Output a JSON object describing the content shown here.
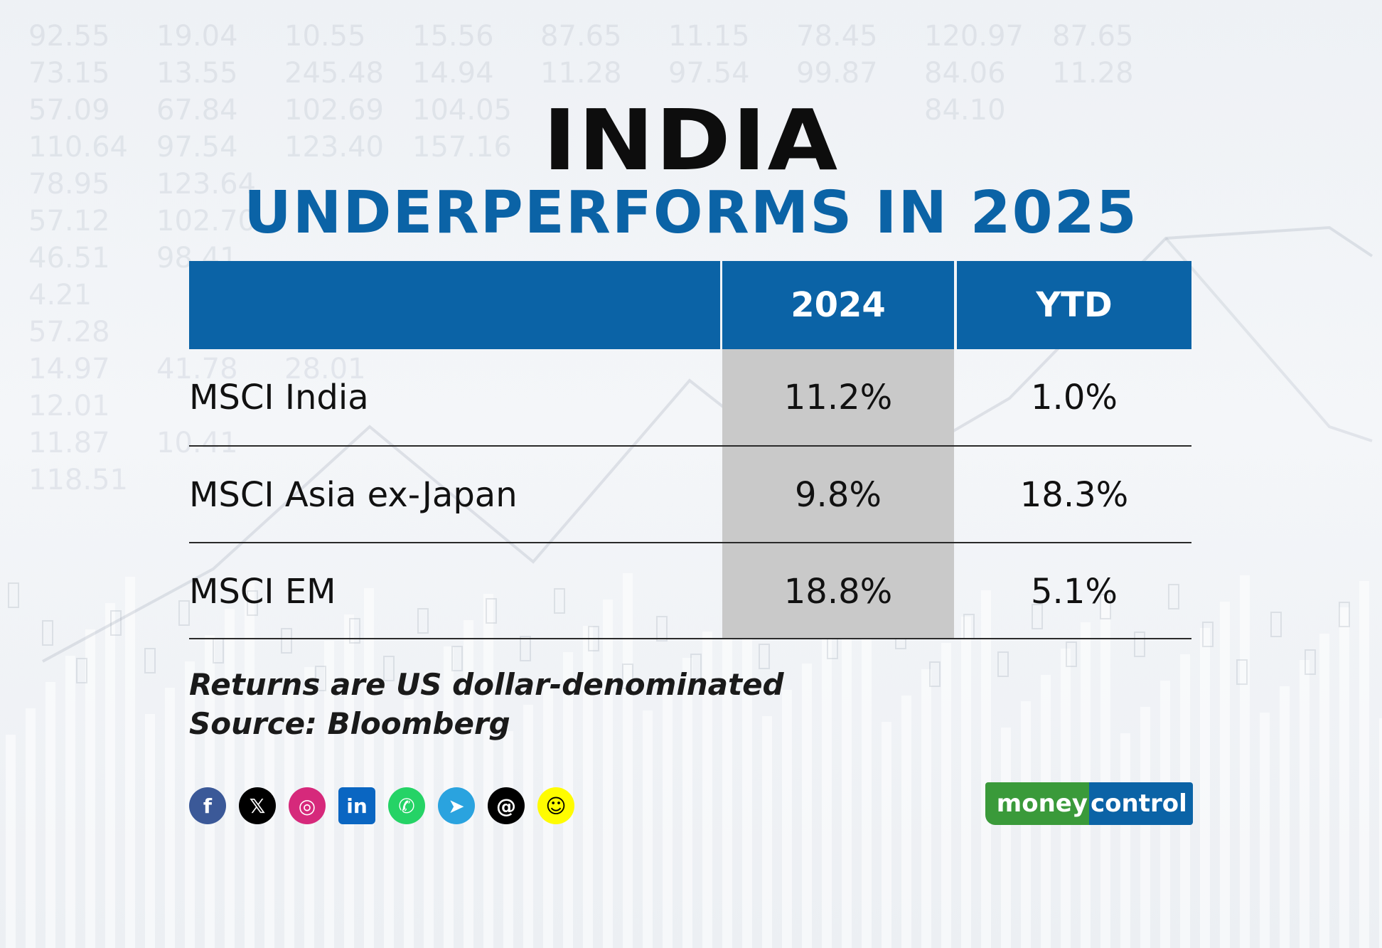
{
  "title_line1": "INDIA",
  "title_line2": "UNDERPERFORMS IN 2025",
  "chart_data": {
    "type": "table",
    "title": "INDIA UNDERPERFORMS IN 2025",
    "columns": [
      "",
      "2024",
      "YTD"
    ],
    "rows": [
      {
        "label": "MSCI India",
        "y2024": "11.2%",
        "ytd": "1.0%"
      },
      {
        "label": "MSCI Asia ex-Japan",
        "y2024": "9.8%",
        "ytd": "18.3%"
      },
      {
        "label": "MSCI EM",
        "y2024": "18.8%",
        "ytd": "5.1%"
      }
    ]
  },
  "notes": {
    "line1": "Returns are US dollar-denominated",
    "line2": "Source: Bloomberg"
  },
  "social_icons": [
    {
      "name": "facebook-icon",
      "glyph": "f",
      "color": "#3b5998"
    },
    {
      "name": "x-icon",
      "glyph": "𝕏",
      "color": "#000000"
    },
    {
      "name": "instagram-icon",
      "glyph": "◎",
      "color": "#d6297b"
    },
    {
      "name": "linkedin-icon",
      "glyph": "in",
      "color": "#0a66c2"
    },
    {
      "name": "whatsapp-icon",
      "glyph": "✆",
      "color": "#25d366"
    },
    {
      "name": "telegram-icon",
      "glyph": "➤",
      "color": "#2aa3df"
    },
    {
      "name": "threads-icon",
      "glyph": "@",
      "color": "#000000"
    },
    {
      "name": "snapchat-icon",
      "glyph": "☺",
      "color": "#fffc00"
    }
  ],
  "logo": {
    "part1": "money",
    "part2": "control"
  },
  "background_numbers": [
    [
      "92.55",
      "19.04",
      "10.55",
      "15.56",
      "87.65",
      "11.15",
      "78.45",
      "120.97",
      "87.65"
    ],
    [
      "73.15",
      "13.55",
      "245.48",
      "14.94",
      "11.28",
      "97.54",
      "99.87",
      "84.06",
      "11.28"
    ],
    [
      "57.09",
      "67.84",
      "102.69",
      "104.05",
      "",
      "",
      "",
      "84.10",
      ""
    ],
    [
      "110.64",
      "97.54",
      "123.40",
      "157.16",
      "",
      "",
      "",
      "",
      ""
    ],
    [
      "78.95",
      "123.64",
      "",
      "",
      "",
      "",
      "",
      "",
      ""
    ],
    [
      "57.12",
      "102.70",
      "",
      "",
      "",
      "",
      "",
      "",
      ""
    ],
    [
      "46.51",
      "98.41",
      "",
      "",
      "",
      "",
      "",
      "",
      ""
    ],
    [
      "4.21",
      "",
      "",
      "",
      "",
      "",
      "",
      "",
      ""
    ],
    [
      "57.28",
      "",
      "",
      "",
      "",
      "",
      "",
      "",
      ""
    ],
    [
      "14.97",
      "41.78",
      "28.01",
      "",
      "",
      "",
      "",
      "",
      ""
    ],
    [
      "12.01",
      "",
      "",
      "",
      "",
      "",
      "",
      "",
      ""
    ],
    [
      "11.87",
      "10.41",
      "",
      "",
      "",
      "",
      "",
      "",
      ""
    ],
    [
      "118.51",
      "",
      "",
      "",
      "",
      "",
      "",
      "",
      ""
    ]
  ]
}
